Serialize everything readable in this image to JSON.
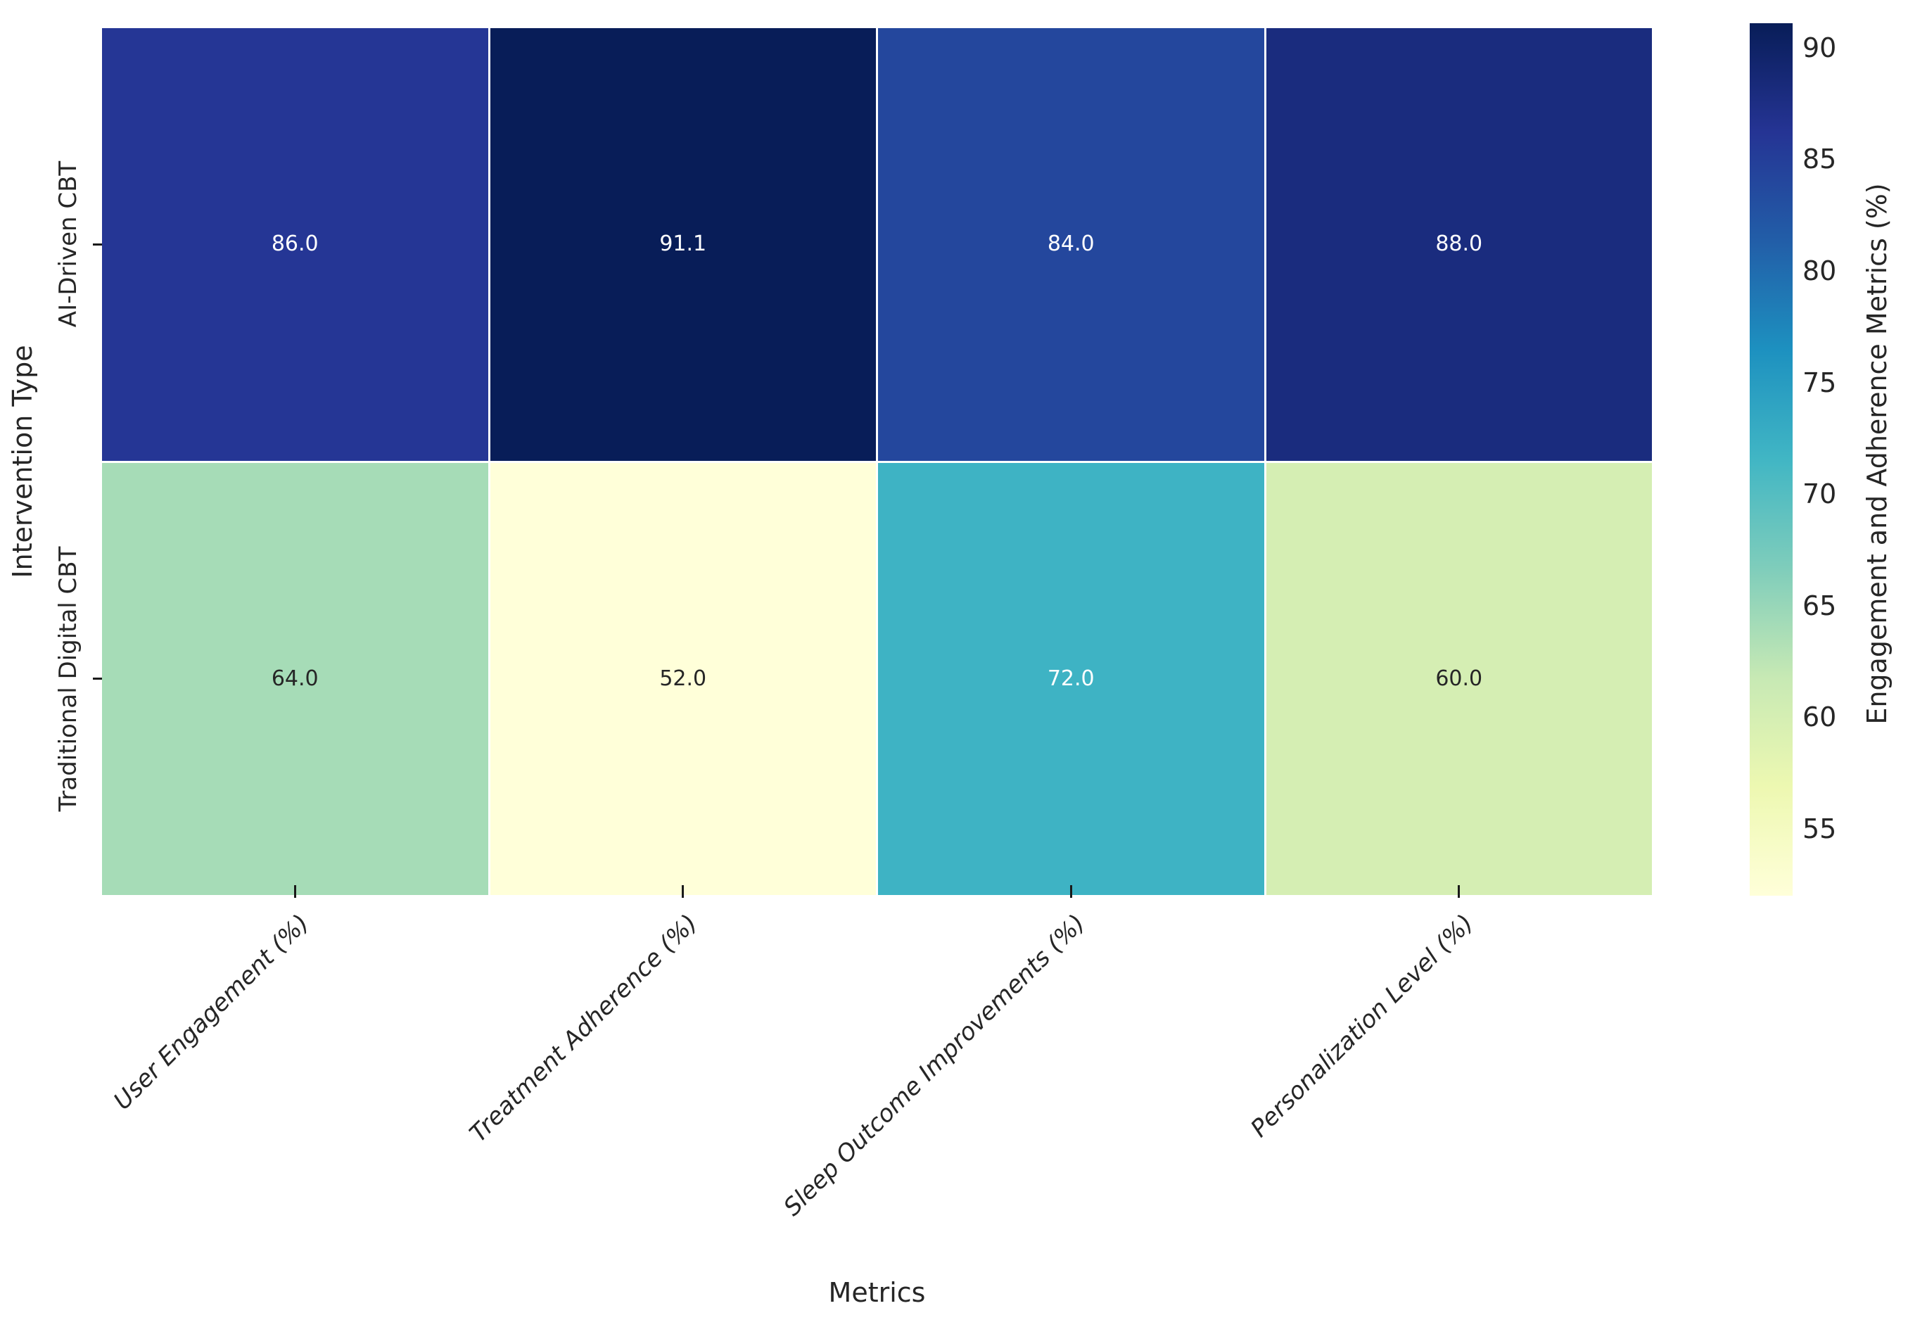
{
  "chart_data": {
    "type": "heatmap",
    "xlabel": "Metrics",
    "ylabel": "Intervention Type",
    "columns": [
      "User Engagement (%)",
      "Treatment Adherence (%)",
      "Sleep Outcome Improvements (%)",
      "Personalization Level (%)"
    ],
    "rows": [
      "AI-Driven CBT",
      "Traditional Digital CBT"
    ],
    "values": [
      [
        86.0,
        91.1,
        84.0,
        88.0
      ],
      [
        64.0,
        52.0,
        72.0,
        60.0
      ]
    ],
    "value_labels": [
      [
        "86.0",
        "91.1",
        "84.0",
        "88.0"
      ],
      [
        "64.0",
        "52.0",
        "72.0",
        "60.0"
      ]
    ],
    "cell_colors": [
      [
        "#253695",
        "#081d58",
        "#24479d",
        "#1a2c7e"
      ],
      [
        "#a6dcb7",
        "#ffffd9",
        "#3eb3c4",
        "#d5eeb3"
      ]
    ],
    "text_colors": [
      [
        "#ffffff",
        "#ffffff",
        "#ffffff",
        "#ffffff"
      ],
      [
        "#262626",
        "#262626",
        "#ffffff",
        "#262626"
      ]
    ],
    "grid": "off",
    "colorbar": {
      "label": "Engagement and Adherence Metrics (%)",
      "ticks": [
        55,
        60,
        65,
        70,
        75,
        80,
        85,
        90
      ],
      "vmin": 52.0,
      "vmax": 91.1,
      "colormap": "YlGnBu",
      "gradient_stops": [
        {
          "pos": 0.0,
          "color": "#ffffd9"
        },
        {
          "pos": 0.125,
          "color": "#edf8b1"
        },
        {
          "pos": 0.25,
          "color": "#c7e9b4"
        },
        {
          "pos": 0.375,
          "color": "#7fcdbb"
        },
        {
          "pos": 0.5,
          "color": "#41b6c4"
        },
        {
          "pos": 0.625,
          "color": "#1d91c0"
        },
        {
          "pos": 0.75,
          "color": "#225ea8"
        },
        {
          "pos": 0.875,
          "color": "#253494"
        },
        {
          "pos": 1.0,
          "color": "#081d58"
        }
      ]
    }
  }
}
